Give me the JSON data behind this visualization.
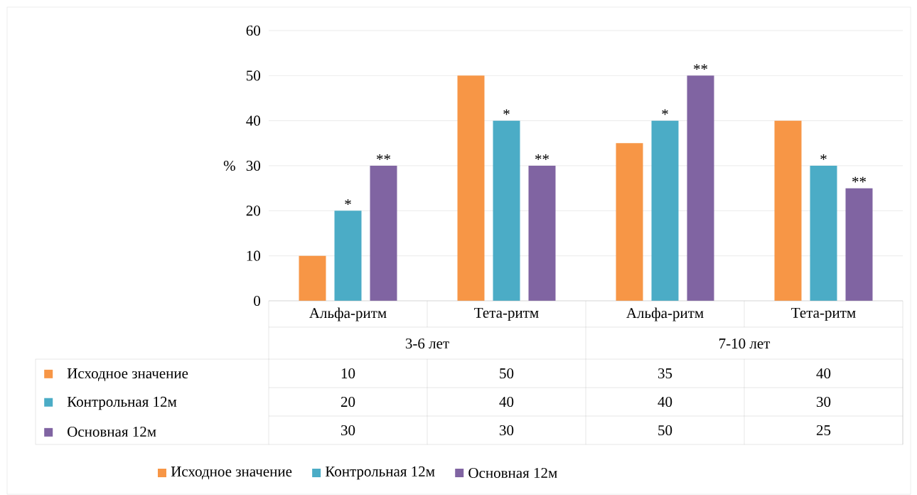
{
  "chart_data": {
    "type": "bar",
    "ylabel": "%",
    "categories": [
      "Альфа-ритм",
      "Тета-ритм",
      "Альфа-ритм",
      "Тета-ритм"
    ],
    "series": [
      {
        "name": "Исходное значение",
        "color": "#f79646",
        "values": [
          10,
          50,
          35,
          40
        ]
      },
      {
        "name": "Контрольная 12м",
        "color": "#4bacc6",
        "values": [
          20,
          40,
          40,
          30
        ]
      },
      {
        "name": "Основная 12м",
        "color": "#8064a2",
        "values": [
          30,
          30,
          50,
          25
        ]
      }
    ],
    "ylim": [
      0,
      60
    ],
    "yticks": [
      0,
      10,
      20,
      30,
      40,
      50,
      60
    ],
    "grid": "y",
    "legend": "bottom",
    "data_labels": true,
    "annotations": [
      "3-6 лет",
      "7-10 лет",
      "*",
      "**",
      "*",
      "**",
      "*",
      "**",
      "*",
      "**"
    ]
  }
}
